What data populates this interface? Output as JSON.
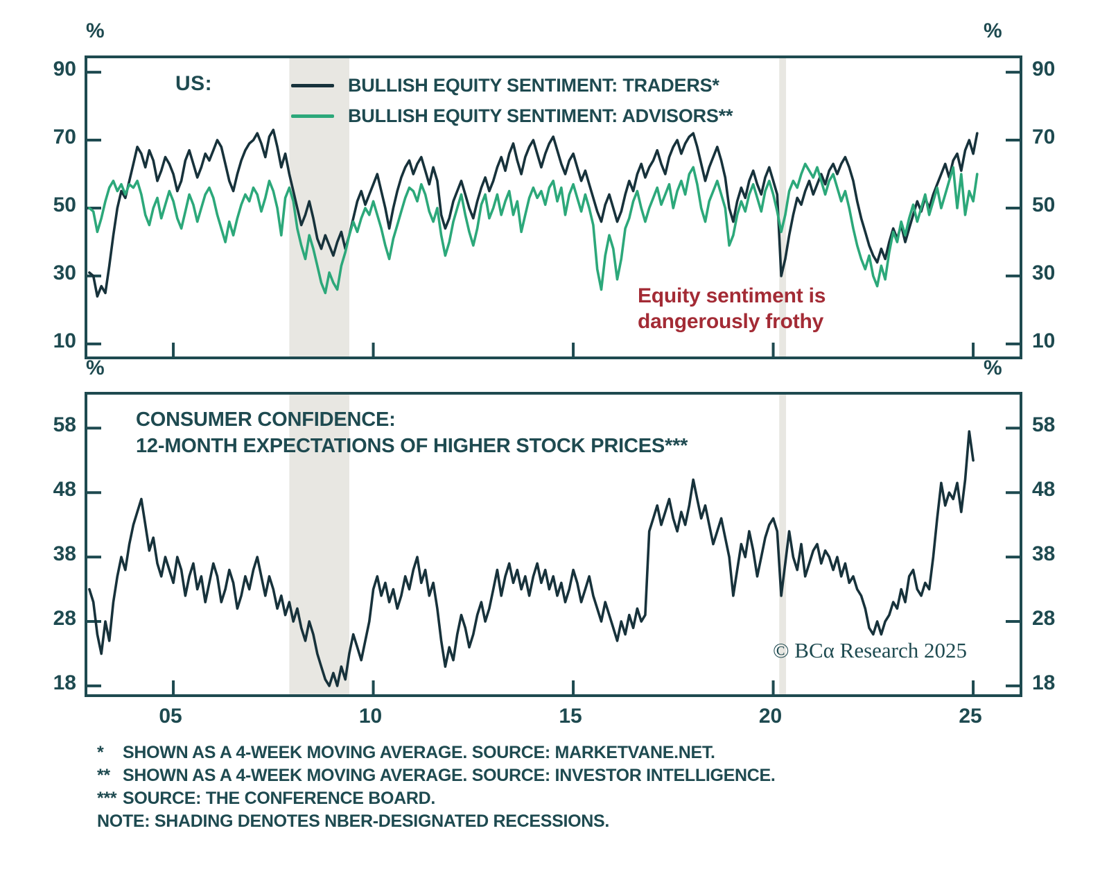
{
  "figure": {
    "percent_symbol": "%",
    "copyright": "© BCα Research 2025",
    "colors": {
      "traders_line": "#17323b",
      "advisors_line": "#2ca87a",
      "confidence_line": "#17323b",
      "ink": "#1e4a50",
      "annotation_red": "#a32b35",
      "recession_shade": "#e8e7e2"
    }
  },
  "footnotes": [
    {
      "marker": "*",
      "text": "SHOWN AS A 4-WEEK MOVING AVERAGE. SOURCE: MARKETVANE.NET."
    },
    {
      "marker": "**",
      "text": "SHOWN AS A 4-WEEK MOVING AVERAGE. SOURCE: INVESTOR INTELLIGENCE."
    },
    {
      "marker": "***",
      "text": "SOURCE: THE CONFERENCE BOARD."
    },
    {
      "marker": "",
      "text": "NOTE: SHADING DENOTES NBER-DESIGNATED RECESSIONS."
    }
  ],
  "chart_data": [
    {
      "type": "line",
      "title": "US:",
      "region_label": "US:",
      "annotation": {
        "line1": "Equity sentiment is",
        "line2": "dangerously frothy"
      },
      "ylabel": "%",
      "xlim": [
        2002.85,
        2026.16
      ],
      "ylim": [
        6.3,
        94.1
      ],
      "yticks": [
        10,
        30,
        50,
        70,
        90
      ],
      "ytick_labels": [
        "10",
        "30",
        "50",
        "70",
        "90"
      ],
      "xticks": [
        2005,
        2010,
        2015,
        2020,
        2025
      ],
      "xtick_labels": [
        "05",
        "10",
        "15",
        "20",
        "25"
      ],
      "grid": false,
      "legend_position": "top-left-inside",
      "recessions": [
        [
          2007.9,
          2009.4
        ],
        [
          2020.15,
          2020.32
        ]
      ],
      "series": [
        {
          "name": "BULLISH EQUITY SENTIMENT: TRADERS*",
          "color": "#17323b",
          "x0": 2002.9,
          "dx": 0.1,
          "values": [
            31,
            30,
            24,
            27,
            25,
            33,
            42,
            50,
            55,
            53,
            58,
            63,
            68,
            66,
            62,
            67,
            64,
            58,
            61,
            65,
            63,
            60,
            55,
            58,
            64,
            67,
            63,
            59,
            62,
            66,
            64,
            67,
            70,
            68,
            63,
            58,
            55,
            60,
            64,
            67,
            69,
            70,
            72,
            69,
            65,
            71,
            73,
            68,
            62,
            66,
            60,
            55,
            50,
            45,
            48,
            52,
            47,
            41,
            38,
            42,
            39,
            36,
            40,
            43,
            38,
            42,
            47,
            52,
            55,
            51,
            54,
            57,
            60,
            55,
            50,
            44,
            50,
            55,
            59,
            62,
            64,
            60,
            63,
            65,
            61,
            57,
            62,
            58,
            48,
            44,
            47,
            52,
            55,
            58,
            54,
            50,
            47,
            52,
            56,
            59,
            55,
            58,
            62,
            65,
            61,
            66,
            69,
            64,
            60,
            65,
            68,
            70,
            66,
            62,
            66,
            69,
            71,
            67,
            63,
            60,
            64,
            66,
            62,
            58,
            61,
            57,
            53,
            49,
            46,
            51,
            54,
            50,
            46,
            49,
            54,
            58,
            55,
            60,
            63,
            59,
            62,
            64,
            67,
            63,
            60,
            65,
            68,
            70,
            66,
            69,
            71,
            72,
            68,
            63,
            58,
            62,
            65,
            68,
            64,
            59,
            50,
            46,
            52,
            56,
            53,
            58,
            61,
            57,
            54,
            59,
            62,
            58,
            54,
            30,
            35,
            42,
            48,
            53,
            51,
            55,
            58,
            54,
            57,
            60,
            57,
            61,
            63,
            60,
            63,
            65,
            62,
            58,
            52,
            47,
            43,
            39,
            36,
            34,
            38,
            35,
            40,
            44,
            41,
            45,
            40,
            44,
            48,
            52,
            49,
            53,
            50,
            54,
            57,
            60,
            63,
            59,
            64,
            66,
            61,
            67,
            70,
            66,
            72
          ]
        },
        {
          "name": "BULLISH EQUITY SENTIMENT: ADVISORS**",
          "color": "#2ca87a",
          "x0": 2002.9,
          "dx": 0.1,
          "values": [
            50,
            49,
            43,
            47,
            52,
            56,
            58,
            55,
            57,
            54,
            57,
            56,
            58,
            54,
            48,
            45,
            50,
            53,
            47,
            51,
            55,
            52,
            47,
            44,
            49,
            54,
            51,
            46,
            50,
            54,
            56,
            53,
            48,
            44,
            40,
            46,
            42,
            47,
            51,
            54,
            52,
            56,
            54,
            49,
            53,
            58,
            55,
            50,
            42,
            53,
            56,
            52,
            44,
            39,
            35,
            42,
            38,
            33,
            28,
            25,
            31,
            28,
            26,
            33,
            37,
            42,
            46,
            43,
            47,
            50,
            48,
            52,
            48,
            44,
            39,
            35,
            41,
            45,
            49,
            53,
            56,
            55,
            52,
            57,
            54,
            49,
            46,
            50,
            42,
            36,
            40,
            46,
            50,
            54,
            48,
            43,
            39,
            44,
            51,
            54,
            47,
            50,
            54,
            48,
            52,
            55,
            48,
            52,
            43,
            48,
            53,
            56,
            53,
            55,
            51,
            56,
            58,
            52,
            56,
            48,
            54,
            57,
            53,
            49,
            54,
            50,
            45,
            32,
            26,
            36,
            42,
            38,
            29,
            35,
            44,
            47,
            52,
            55,
            50,
            46,
            50,
            53,
            56,
            51,
            54,
            57,
            50,
            55,
            58,
            54,
            60,
            62,
            57,
            50,
            46,
            52,
            55,
            58,
            54,
            50,
            39,
            42,
            48,
            52,
            49,
            54,
            57,
            53,
            49,
            55,
            58,
            54,
            49,
            43,
            48,
            55,
            58,
            56,
            60,
            63,
            61,
            59,
            62,
            58,
            54,
            58,
            60,
            56,
            52,
            55,
            50,
            44,
            39,
            35,
            32,
            36,
            30,
            27,
            33,
            29,
            37,
            43,
            40,
            46,
            42,
            47,
            51,
            46,
            50,
            54,
            48,
            52,
            56,
            50,
            54,
            58,
            62,
            50,
            60,
            48,
            55,
            52,
            60
          ]
        }
      ]
    },
    {
      "type": "line",
      "title": "CONSUMER CONFIDENCE: 12-MONTH EXPECTATIONS OF HIGHER STOCK PRICES***",
      "title_line1": "CONSUMER CONFIDENCE:",
      "title_line2": "12-MONTH EXPECTATIONS OF HIGHER STOCK PRICES***",
      "ylabel": "%",
      "xlim": [
        2002.85,
        2026.16
      ],
      "ylim": [
        16.7,
        63.2
      ],
      "yticks": [
        18,
        28,
        38,
        48,
        58
      ],
      "ytick_labels": [
        "18",
        "28",
        "38",
        "48",
        "58"
      ],
      "xticks": [
        2005,
        2010,
        2015,
        2020,
        2025
      ],
      "xtick_labels": [
        "05",
        "10",
        "15",
        "20",
        "25"
      ],
      "grid": false,
      "recessions": [
        [
          2007.9,
          2009.4
        ],
        [
          2020.15,
          2020.32
        ]
      ],
      "series": [
        {
          "name": "CONSUMER CONFIDENCE: 12-MONTH EXPECTATIONS OF HIGHER STOCK PRICES***",
          "color": "#17323b",
          "x0": 2002.9,
          "dx": 0.1,
          "values": [
            33,
            31,
            26,
            23,
            28,
            25,
            31,
            35,
            38,
            36,
            40,
            43,
            45,
            47,
            43,
            39,
            41,
            37,
            35,
            38,
            36,
            34,
            38,
            36,
            32,
            35,
            37,
            33,
            35,
            31,
            34,
            37,
            35,
            31,
            33,
            36,
            34,
            30,
            32,
            35,
            33,
            36,
            38,
            35,
            32,
            35,
            33,
            30,
            32,
            29,
            31,
            28,
            30,
            27,
            25,
            28,
            26,
            23,
            21,
            19,
            18,
            20,
            18,
            21,
            19,
            23,
            26,
            24,
            22,
            25,
            28,
            33,
            35,
            32,
            34,
            31,
            33,
            30,
            32,
            35,
            33,
            36,
            38,
            34,
            36,
            32,
            34,
            30,
            25,
            21,
            24,
            22,
            26,
            29,
            27,
            24,
            26,
            29,
            31,
            28,
            30,
            33,
            36,
            32,
            35,
            37,
            34,
            36,
            33,
            35,
            32,
            35,
            37,
            34,
            36,
            33,
            35,
            32,
            34,
            31,
            33,
            36,
            34,
            31,
            33,
            35,
            32,
            30,
            28,
            31,
            29,
            27,
            25,
            28,
            26,
            29,
            27,
            30,
            28,
            29,
            42,
            44,
            46,
            43,
            45,
            47,
            44,
            42,
            45,
            43,
            46,
            50,
            47,
            44,
            46,
            43,
            40,
            42,
            44,
            41,
            38,
            32,
            36,
            40,
            38,
            42,
            39,
            35,
            38,
            41,
            43,
            44,
            42,
            32,
            37,
            42,
            38,
            36,
            40,
            35,
            37,
            39,
            40,
            37,
            39,
            38,
            36,
            38,
            35,
            37,
            34,
            35,
            33,
            32,
            30,
            27,
            26,
            28,
            26,
            28,
            29,
            31,
            30,
            33,
            31,
            35,
            36,
            33,
            32,
            34,
            33,
            38,
            44,
            49.5,
            46,
            48,
            47,
            49.5,
            45,
            50,
            57.5,
            53
          ]
        }
      ]
    }
  ]
}
